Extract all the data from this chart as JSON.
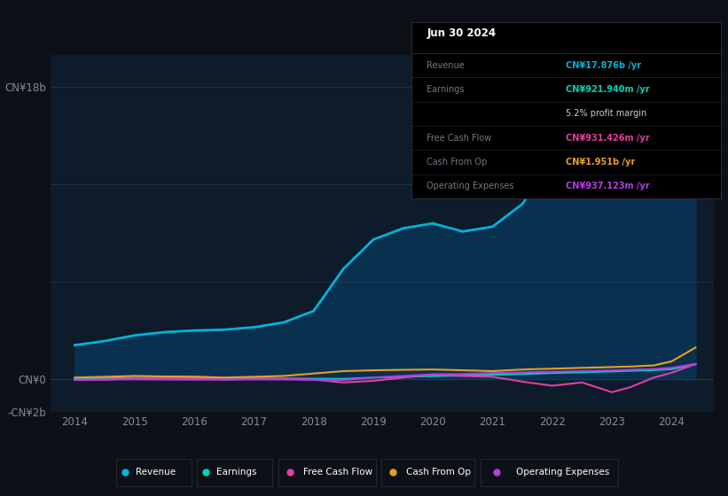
{
  "background_color": "#0d1117",
  "plot_bg_color": "#0d1b2a",
  "title": "Jun 30 2024",
  "info_box_rows": [
    {
      "label": "Revenue",
      "value": "CN¥17.876b /yr",
      "value_color": "#00b4d8"
    },
    {
      "label": "Earnings",
      "value": "CN¥921.940m /yr",
      "value_color": "#00d4b8"
    },
    {
      "label": "",
      "value": "5.2% profit margin",
      "value_color": "#cccccc"
    },
    {
      "label": "Free Cash Flow",
      "value": "CN¥931.426m /yr",
      "value_color": "#e040a0"
    },
    {
      "label": "Cash From Op",
      "value": "CN¥1.951b /yr",
      "value_color": "#e8a020"
    },
    {
      "label": "Operating Expenses",
      "value": "CN¥937.123m /yr",
      "value_color": "#b040e0"
    }
  ],
  "ylim_min": -2000000000,
  "ylim_max": 20000000000,
  "xlim_min": 2013.6,
  "xlim_max": 2024.7,
  "years": [
    2014.0,
    2014.5,
    2015.0,
    2015.5,
    2016.0,
    2016.5,
    2017.0,
    2017.5,
    2018.0,
    2018.5,
    2019.0,
    2019.5,
    2020.0,
    2020.5,
    2021.0,
    2021.5,
    2022.0,
    2022.5,
    2023.0,
    2023.3,
    2023.7,
    2024.0,
    2024.4
  ],
  "revenue": [
    2100000000,
    2350000000,
    2700000000,
    2900000000,
    3000000000,
    3050000000,
    3200000000,
    3500000000,
    4200000000,
    6800000000,
    8600000000,
    9300000000,
    9600000000,
    9100000000,
    9400000000,
    10800000000,
    13500000000,
    15200000000,
    16400000000,
    16700000000,
    16900000000,
    17300000000,
    17876000000
  ],
  "earnings": [
    50000000,
    60000000,
    80000000,
    100000000,
    80000000,
    60000000,
    50000000,
    40000000,
    30000000,
    20000000,
    100000000,
    150000000,
    200000000,
    220000000,
    280000000,
    320000000,
    380000000,
    430000000,
    480000000,
    520000000,
    560000000,
    620000000,
    921940000
  ],
  "free_cash_flow": [
    -50000000,
    -30000000,
    50000000,
    80000000,
    30000000,
    -20000000,
    10000000,
    20000000,
    -30000000,
    -200000000,
    -100000000,
    100000000,
    300000000,
    200000000,
    150000000,
    -150000000,
    -400000000,
    -200000000,
    -800000000,
    -500000000,
    100000000,
    400000000,
    931426000
  ],
  "cash_from_op": [
    100000000,
    150000000,
    200000000,
    170000000,
    160000000,
    100000000,
    150000000,
    200000000,
    350000000,
    500000000,
    550000000,
    580000000,
    600000000,
    550000000,
    500000000,
    600000000,
    650000000,
    700000000,
    750000000,
    780000000,
    850000000,
    1100000000,
    1951000000
  ],
  "op_expenses": [
    -30000000,
    -20000000,
    -10000000,
    -20000000,
    -30000000,
    -20000000,
    -10000000,
    -20000000,
    -30000000,
    -50000000,
    100000000,
    200000000,
    300000000,
    320000000,
    380000000,
    420000000,
    460000000,
    500000000,
    540000000,
    580000000,
    620000000,
    700000000,
    937123000
  ],
  "revenue_color": "#00b4d8",
  "revenue_fill": "#0a3050",
  "earnings_color": "#00d4b8",
  "free_cash_flow_color": "#e040a0",
  "cash_from_op_color": "#e8a020",
  "op_expenses_color": "#b040e0",
  "grid_color": "#1e3a4a",
  "text_color": "#888899",
  "xticks": [
    2014,
    2015,
    2016,
    2017,
    2018,
    2019,
    2020,
    2021,
    2022,
    2023,
    2024
  ],
  "ytick_positions": [
    -2000000000,
    0,
    6000000000,
    12000000000,
    18000000000
  ],
  "ytick_labels": [
    "-CN¥2b",
    "CN¥0",
    "",
    "",
    "CN¥18b"
  ],
  "legend_labels": [
    "Revenue",
    "Earnings",
    "Free Cash Flow",
    "Cash From Op",
    "Operating Expenses"
  ],
  "legend_colors": [
    "#00b4d8",
    "#00d4b8",
    "#e040a0",
    "#e8a020",
    "#b040e0"
  ]
}
